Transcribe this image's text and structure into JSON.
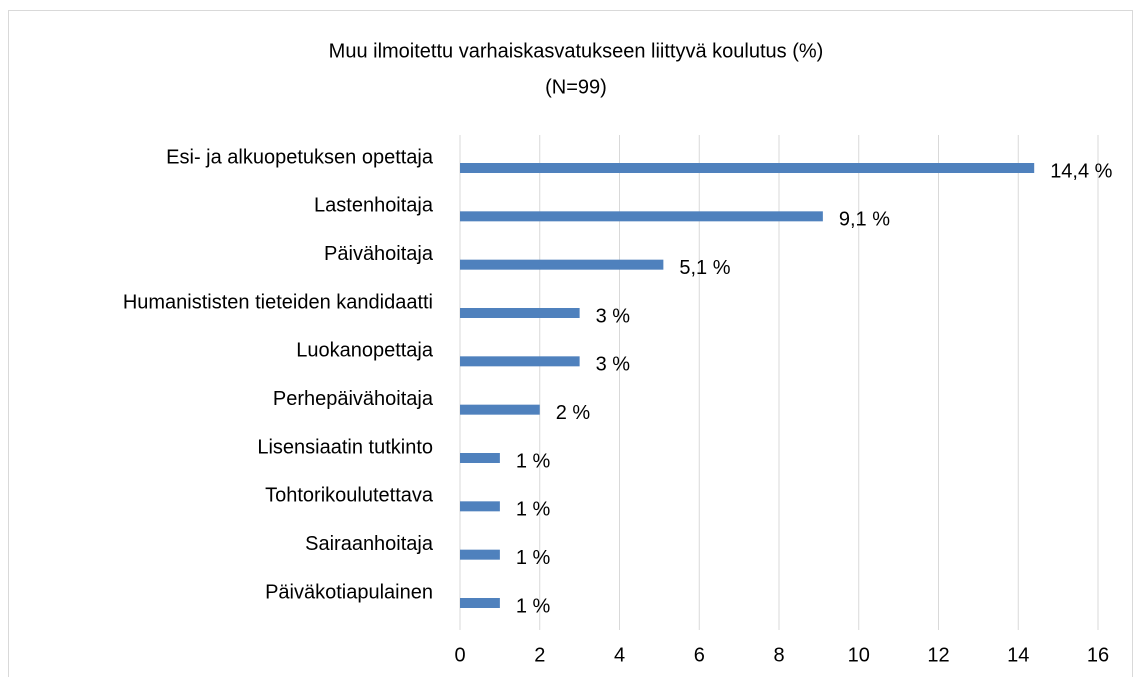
{
  "chart_data": {
    "type": "bar",
    "orientation": "horizontal",
    "title": "Muu ilmoitettu varhaiskasvatukseen liittyvä koulutus (%)",
    "subtitle": "(N=99)",
    "categories": [
      "Esi- ja alkuopetuksen opettaja",
      "Lastenhoitaja",
      "Päivähoitaja",
      "Humanististen tieteiden kandidaatti",
      "Luokanopettaja",
      "Perhepäivähoitaja",
      "Lisensiaatin tutkinto",
      "Tohtorikoulutettava",
      "Sairaanhoitaja",
      "Päiväkotiapulainen"
    ],
    "values": [
      14.4,
      9.1,
      5.1,
      3,
      3,
      2,
      1,
      1,
      1,
      1
    ],
    "value_labels": [
      "14,4 %",
      "9,1 %",
      "5,1 %",
      "3 %",
      "3 %",
      "2 %",
      "1 %",
      "1 %",
      "1 %",
      "1 %"
    ],
    "color": "#4f81bd",
    "xlim": [
      0,
      16
    ],
    "xticks": [
      0,
      2,
      4,
      6,
      8,
      10,
      12,
      14,
      16
    ],
    "grid": true
  }
}
